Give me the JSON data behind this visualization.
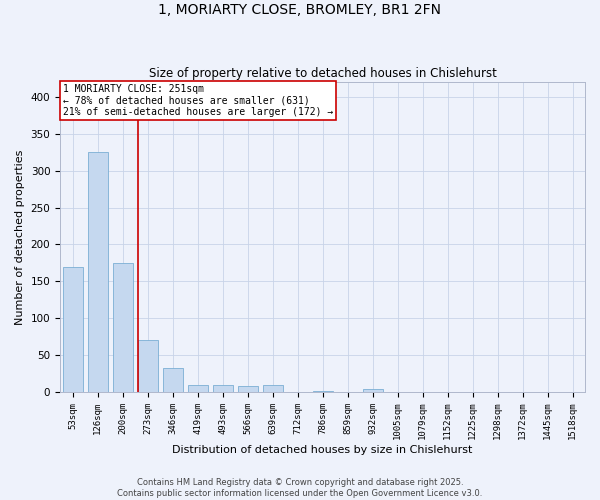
{
  "title_line1": "1, MORIARTY CLOSE, BROMLEY, BR1 2FN",
  "title_line2": "Size of property relative to detached houses in Chislehurst",
  "xlabel": "Distribution of detached houses by size in Chislehurst",
  "ylabel": "Number of detached properties",
  "categories": [
    "53sqm",
    "126sqm",
    "200sqm",
    "273sqm",
    "346sqm",
    "419sqm",
    "493sqm",
    "566sqm",
    "639sqm",
    "712sqm",
    "786sqm",
    "859sqm",
    "932sqm",
    "1005sqm",
    "1079sqm",
    "1152sqm",
    "1225sqm",
    "1298sqm",
    "1372sqm",
    "1445sqm",
    "1518sqm"
  ],
  "values": [
    170,
    325,
    175,
    70,
    33,
    10,
    9,
    8,
    10,
    0,
    2,
    0,
    4,
    0,
    0,
    0,
    0,
    0,
    0,
    0,
    0
  ],
  "bar_color": "#c5d8ef",
  "bar_edge_color": "#7bafd4",
  "red_line_index": 3,
  "annotation_text": "1 MORIARTY CLOSE: 251sqm\n← 78% of detached houses are smaller (631)\n21% of semi-detached houses are larger (172) →",
  "annotation_box_color": "#ffffff",
  "annotation_box_edge": "#cc0000",
  "red_line_color": "#cc0000",
  "ylim": [
    0,
    420
  ],
  "yticks": [
    0,
    50,
    100,
    150,
    200,
    250,
    300,
    350,
    400
  ],
  "footer_line1": "Contains HM Land Registry data © Crown copyright and database right 2025.",
  "footer_line2": "Contains public sector information licensed under the Open Government Licence v3.0.",
  "bg_color": "#eef2fb",
  "grid_color": "#c8d4e8"
}
